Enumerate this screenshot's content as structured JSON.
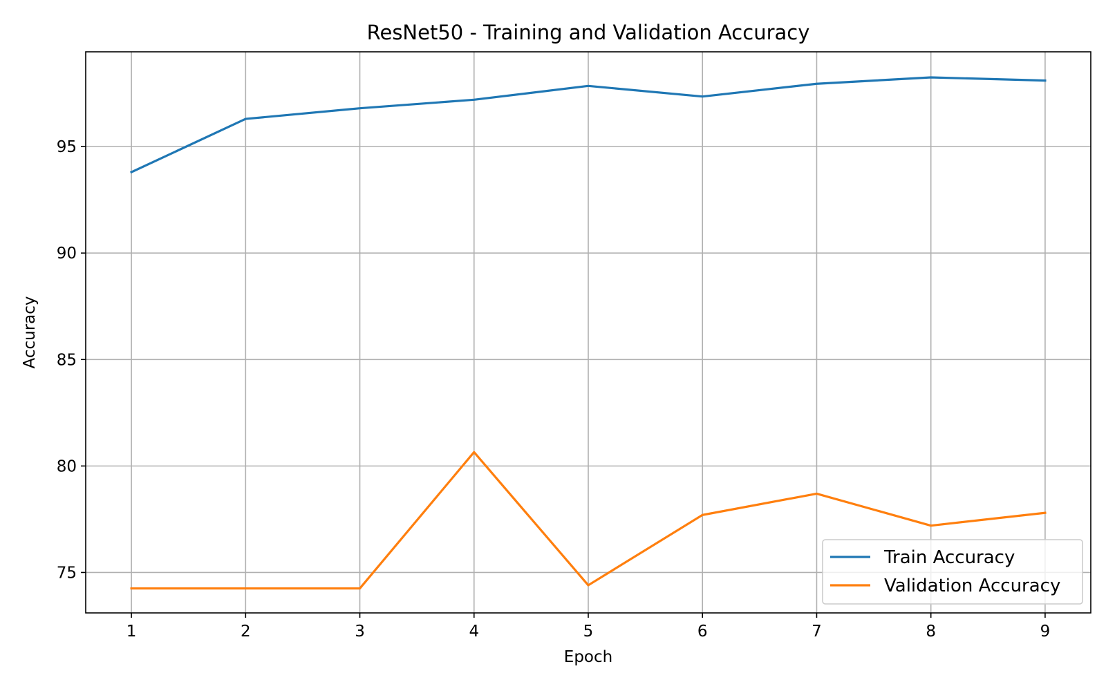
{
  "chart_data": {
    "type": "line",
    "title": "ResNet50 - Training and Validation Accuracy",
    "xlabel": "Epoch",
    "ylabel": "Accuracy",
    "x": [
      1,
      2,
      3,
      4,
      5,
      6,
      7,
      8,
      9
    ],
    "xlim": [
      0.6,
      9.4
    ],
    "ylim": [
      73.1,
      99.45
    ],
    "xticks": [
      "1",
      "2",
      "3",
      "4",
      "5",
      "6",
      "7",
      "8",
      "9"
    ],
    "yticks": [
      "75",
      "80",
      "85",
      "90",
      "95"
    ],
    "grid": true,
    "legend_position": "lower right",
    "series": [
      {
        "name": "Train Accuracy",
        "color": "#1f77b4",
        "values": [
          93.8,
          96.3,
          96.8,
          97.2,
          97.85,
          97.35,
          97.95,
          98.25,
          98.1
        ]
      },
      {
        "name": "Validation Accuracy",
        "color": "#ff7f0e",
        "values": [
          74.25,
          74.25,
          74.25,
          80.65,
          74.4,
          77.7,
          78.7,
          77.2,
          77.8
        ]
      }
    ]
  }
}
